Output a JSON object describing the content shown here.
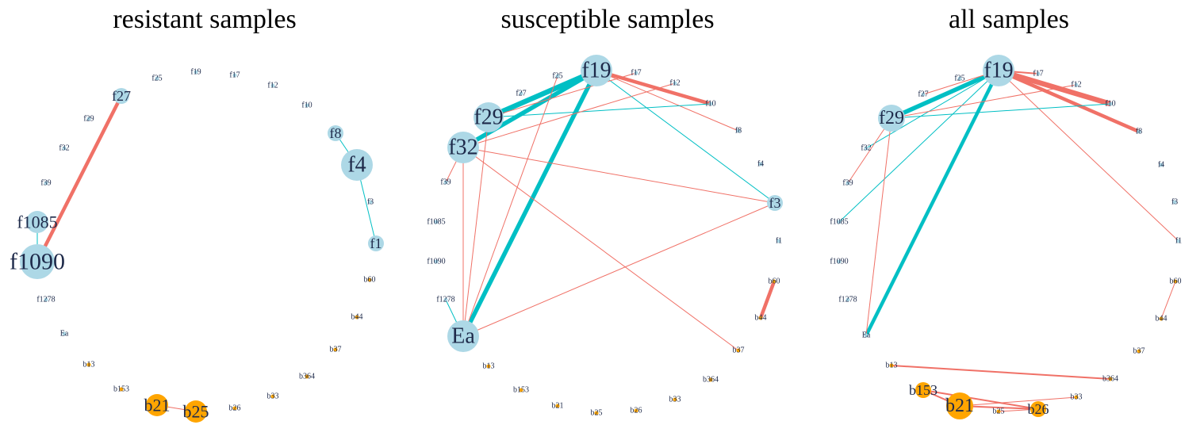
{
  "colors": {
    "fungal_node": "#add8e6",
    "bacterial_node": "#ffa500",
    "positive_edge": "#f07167",
    "negative_edge": "#00bfc4",
    "label": "#1e2a4a"
  },
  "node_order": [
    "f19",
    "f17",
    "f12",
    "f10",
    "f8",
    "f4",
    "f3",
    "f1",
    "b60",
    "b44",
    "b37",
    "b364",
    "b33",
    "b26",
    "b25",
    "b21",
    "b153",
    "b13",
    "Ea",
    "f1278",
    "f1090",
    "f1085",
    "f39",
    "f32",
    "f29",
    "f27",
    "f25"
  ],
  "panels": [
    {
      "title": "resistant samples",
      "nodes": [
        {
          "id": "f27",
          "size": 2
        },
        {
          "id": "f25",
          "size": 0
        },
        {
          "id": "f19",
          "size": 0
        },
        {
          "id": "f17",
          "size": 0
        },
        {
          "id": "f12",
          "size": 0
        },
        {
          "id": "f10",
          "size": 0
        },
        {
          "id": "f8",
          "size": 2
        },
        {
          "id": "f4",
          "size": 6
        },
        {
          "id": "f3",
          "size": 0
        },
        {
          "id": "f1",
          "size": 2
        },
        {
          "id": "f29",
          "size": 0
        },
        {
          "id": "f32",
          "size": 0
        },
        {
          "id": "f39",
          "size": 0
        },
        {
          "id": "f1085",
          "size": 3
        },
        {
          "id": "f1090",
          "size": 7
        },
        {
          "id": "f1278",
          "size": 0
        },
        {
          "id": "Ea",
          "size": 0
        },
        {
          "id": "b60",
          "size": 0
        },
        {
          "id": "b44",
          "size": 0
        },
        {
          "id": "b37",
          "size": 0
        },
        {
          "id": "b364",
          "size": 0
        },
        {
          "id": "b33",
          "size": 0
        },
        {
          "id": "b26",
          "size": 0
        },
        {
          "id": "b25",
          "size": 3
        },
        {
          "id": "b21",
          "size": 3
        },
        {
          "id": "b153",
          "size": 0
        },
        {
          "id": "b13",
          "size": 0
        }
      ],
      "edges": [
        {
          "source": "f27",
          "target": "f1090",
          "sign": "positive",
          "weight": 4
        },
        {
          "source": "f1085",
          "target": "f1090",
          "sign": "negative",
          "weight": 1
        },
        {
          "source": "f8",
          "target": "f4",
          "sign": "negative",
          "weight": 1
        },
        {
          "source": "f4",
          "target": "f1",
          "sign": "negative",
          "weight": 1
        },
        {
          "source": "b21",
          "target": "b25",
          "sign": "positive",
          "weight": 1
        }
      ]
    },
    {
      "title": "susceptible samples",
      "nodes": [
        {
          "id": "f19",
          "size": 6
        },
        {
          "id": "f25",
          "size": 0
        },
        {
          "id": "f17",
          "size": 0
        },
        {
          "id": "f12",
          "size": 0
        },
        {
          "id": "f10",
          "size": 0
        },
        {
          "id": "f8",
          "size": 0
        },
        {
          "id": "f4",
          "size": 0
        },
        {
          "id": "f3",
          "size": 2
        },
        {
          "id": "f1",
          "size": 0
        },
        {
          "id": "f27",
          "size": 0
        },
        {
          "id": "f29",
          "size": 5
        },
        {
          "id": "f32",
          "size": 6
        },
        {
          "id": "f39",
          "size": 0
        },
        {
          "id": "f1085",
          "size": 0
        },
        {
          "id": "f1090",
          "size": 0
        },
        {
          "id": "f1278",
          "size": 0
        },
        {
          "id": "Ea",
          "size": 6
        },
        {
          "id": "b60",
          "size": 0
        },
        {
          "id": "b44",
          "size": 0
        },
        {
          "id": "b37",
          "size": 0
        },
        {
          "id": "b364",
          "size": 0
        },
        {
          "id": "b33",
          "size": 0
        },
        {
          "id": "b26",
          "size": 0
        },
        {
          "id": "b25",
          "size": 0
        },
        {
          "id": "b21",
          "size": 0
        },
        {
          "id": "b153",
          "size": 0
        },
        {
          "id": "b13",
          "size": 0
        }
      ],
      "edges": [
        {
          "source": "f19",
          "target": "f29",
          "sign": "negative",
          "weight": 6
        },
        {
          "source": "f19",
          "target": "f32",
          "sign": "negative",
          "weight": 5
        },
        {
          "source": "f19",
          "target": "Ea",
          "sign": "negative",
          "weight": 5
        },
        {
          "source": "f19",
          "target": "f3",
          "sign": "negative",
          "weight": 1
        },
        {
          "source": "f19",
          "target": "f10",
          "sign": "positive",
          "weight": 4
        },
        {
          "source": "f19",
          "target": "f8",
          "sign": "positive",
          "weight": 1
        },
        {
          "source": "f29",
          "target": "f10",
          "sign": "negative",
          "weight": 1
        },
        {
          "source": "f29",
          "target": "f17",
          "sign": "positive",
          "weight": 1
        },
        {
          "source": "f29",
          "target": "Ea",
          "sign": "positive",
          "weight": 1
        },
        {
          "source": "f32",
          "target": "f12",
          "sign": "positive",
          "weight": 1
        },
        {
          "source": "f32",
          "target": "f39",
          "sign": "positive",
          "weight": 1
        },
        {
          "source": "f32",
          "target": "Ea",
          "sign": "positive",
          "weight": 1
        },
        {
          "source": "f32",
          "target": "f3",
          "sign": "positive",
          "weight": 1
        },
        {
          "source": "f32",
          "target": "b37",
          "sign": "positive",
          "weight": 1
        },
        {
          "source": "f25",
          "target": "Ea",
          "sign": "positive",
          "weight": 1
        },
        {
          "source": "Ea",
          "target": "f3",
          "sign": "positive",
          "weight": 1
        },
        {
          "source": "Ea",
          "target": "f1278",
          "sign": "negative",
          "weight": 1
        },
        {
          "source": "b60",
          "target": "b44",
          "sign": "positive",
          "weight": 4
        }
      ]
    },
    {
      "title": "all samples",
      "nodes": [
        {
          "id": "f19",
          "size": 6
        },
        {
          "id": "f17",
          "size": 0
        },
        {
          "id": "f12",
          "size": 0
        },
        {
          "id": "f10",
          "size": 0
        },
        {
          "id": "f8",
          "size": 0
        },
        {
          "id": "f4",
          "size": 0
        },
        {
          "id": "f3",
          "size": 0
        },
        {
          "id": "f1",
          "size": 0
        },
        {
          "id": "f25",
          "size": 0
        },
        {
          "id": "f27",
          "size": 0
        },
        {
          "id": "f29",
          "size": 4
        },
        {
          "id": "f32",
          "size": 0
        },
        {
          "id": "f39",
          "size": 0
        },
        {
          "id": "f1085",
          "size": 0
        },
        {
          "id": "f1090",
          "size": 0
        },
        {
          "id": "f1278",
          "size": 0
        },
        {
          "id": "Ea",
          "size": 0
        },
        {
          "id": "b60",
          "size": 0
        },
        {
          "id": "b44",
          "size": 0
        },
        {
          "id": "b37",
          "size": 0
        },
        {
          "id": "b364",
          "size": 0
        },
        {
          "id": "b33",
          "size": 0
        },
        {
          "id": "b26",
          "size": 2
        },
        {
          "id": "b25",
          "size": 0
        },
        {
          "id": "b21",
          "size": 4
        },
        {
          "id": "b153",
          "size": 2
        },
        {
          "id": "b13",
          "size": 0
        }
      ],
      "edges": [
        {
          "source": "f19",
          "target": "f29",
          "sign": "negative",
          "weight": 5
        },
        {
          "source": "f19",
          "target": "Ea",
          "sign": "negative",
          "weight": 4
        },
        {
          "source": "f19",
          "target": "f10",
          "sign": "positive",
          "weight": 6
        },
        {
          "source": "f19",
          "target": "f8",
          "sign": "positive",
          "weight": 4
        },
        {
          "source": "f19",
          "target": "f17",
          "sign": "positive",
          "weight": 2
        },
        {
          "source": "f19",
          "target": "f1",
          "sign": "positive",
          "weight": 1
        },
        {
          "source": "f19",
          "target": "f32",
          "sign": "negative",
          "weight": 1
        },
        {
          "source": "f19",
          "target": "f1085",
          "sign": "negative",
          "weight": 1
        },
        {
          "source": "f27",
          "target": "f19",
          "sign": "positive",
          "weight": 1
        },
        {
          "source": "f29",
          "target": "f10",
          "sign": "negative",
          "weight": 1
        },
        {
          "source": "f29",
          "target": "f12",
          "sign": "positive",
          "weight": 1
        },
        {
          "source": "f29",
          "target": "f39",
          "sign": "positive",
          "weight": 1
        },
        {
          "source": "f29",
          "target": "Ea",
          "sign": "positive",
          "weight": 1
        },
        {
          "source": "b60",
          "target": "b44",
          "sign": "positive",
          "weight": 1
        },
        {
          "source": "b13",
          "target": "b364",
          "sign": "positive",
          "weight": 2
        },
        {
          "source": "b153",
          "target": "b21",
          "sign": "positive",
          "weight": 2
        },
        {
          "source": "b153",
          "target": "b26",
          "sign": "positive",
          "weight": 2
        },
        {
          "source": "b21",
          "target": "b26",
          "sign": "positive",
          "weight": 2
        },
        {
          "source": "b21",
          "target": "b33",
          "sign": "positive",
          "weight": 1
        },
        {
          "source": "b25",
          "target": "b26",
          "sign": "positive",
          "weight": 1
        }
      ]
    }
  ]
}
